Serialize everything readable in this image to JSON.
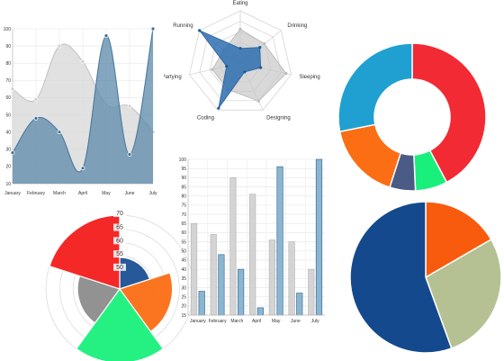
{
  "chart_data": [
    {
      "type": "area",
      "categories": [
        "January",
        "February",
        "March",
        "April",
        "May",
        "June",
        "July"
      ],
      "yticks": [
        10,
        20,
        30,
        40,
        50,
        60,
        70,
        80,
        90,
        100
      ],
      "ylim": [
        10,
        100
      ],
      "series": [
        {
          "color": "#d9d9d9",
          "values": [
            65,
            59,
            90,
            81,
            56,
            55,
            40
          ]
        },
        {
          "color": "#5c88aa",
          "values": [
            28,
            48,
            40,
            19,
            96,
            27,
            100
          ]
        }
      ]
    },
    {
      "type": "radar",
      "categories": [
        "Eating",
        "Drinking",
        "Sleeping",
        "Designing",
        "Coding",
        "Partying",
        "Running"
      ],
      "max": 100,
      "series": [
        {
          "color": "#c8c8c8",
          "values": [
            65,
            59,
            90,
            81,
            56,
            55,
            40
          ]
        },
        {
          "color": "#2f6fb0",
          "values": [
            28,
            48,
            40,
            19,
            96,
            27,
            100
          ]
        }
      ]
    },
    {
      "type": "pie",
      "variant": "doughnut",
      "values": [
        300,
        50,
        40,
        120,
        200
      ],
      "colors": [
        "#f22a33",
        "#19f07c",
        "#4a5b85",
        "#fb6e14",
        "#1fa0d0"
      ]
    },
    {
      "type": "polarArea",
      "values": [
        30,
        50,
        100,
        40,
        120
      ],
      "max": 70,
      "ticks": [
        50,
        55,
        60,
        65,
        70
      ],
      "colors": [
        "#1b4f93",
        "#fb6e14",
        "#19f07c",
        "#8c8c8c",
        "#f41c1c"
      ]
    },
    {
      "type": "bar",
      "categories": [
        "January",
        "February",
        "March",
        "April",
        "May",
        "June",
        "July"
      ],
      "yticks": [
        15,
        20,
        25,
        30,
        35,
        40,
        45,
        50,
        55,
        60,
        65,
        70,
        75,
        80,
        85,
        90,
        95,
        100
      ],
      "ylim": [
        15,
        100
      ],
      "series": [
        {
          "color": "#d4d4d4",
          "values": [
            65,
            59,
            90,
            81,
            56,
            55,
            40
          ]
        },
        {
          "color": "#8bb5d0",
          "values": [
            28,
            48,
            40,
            19,
            96,
            27,
            100
          ]
        }
      ]
    },
    {
      "type": "pie",
      "values": [
        30,
        50,
        100
      ],
      "colors": [
        "#f85a0e",
        "#b5c193",
        "#14498d"
      ]
    }
  ]
}
